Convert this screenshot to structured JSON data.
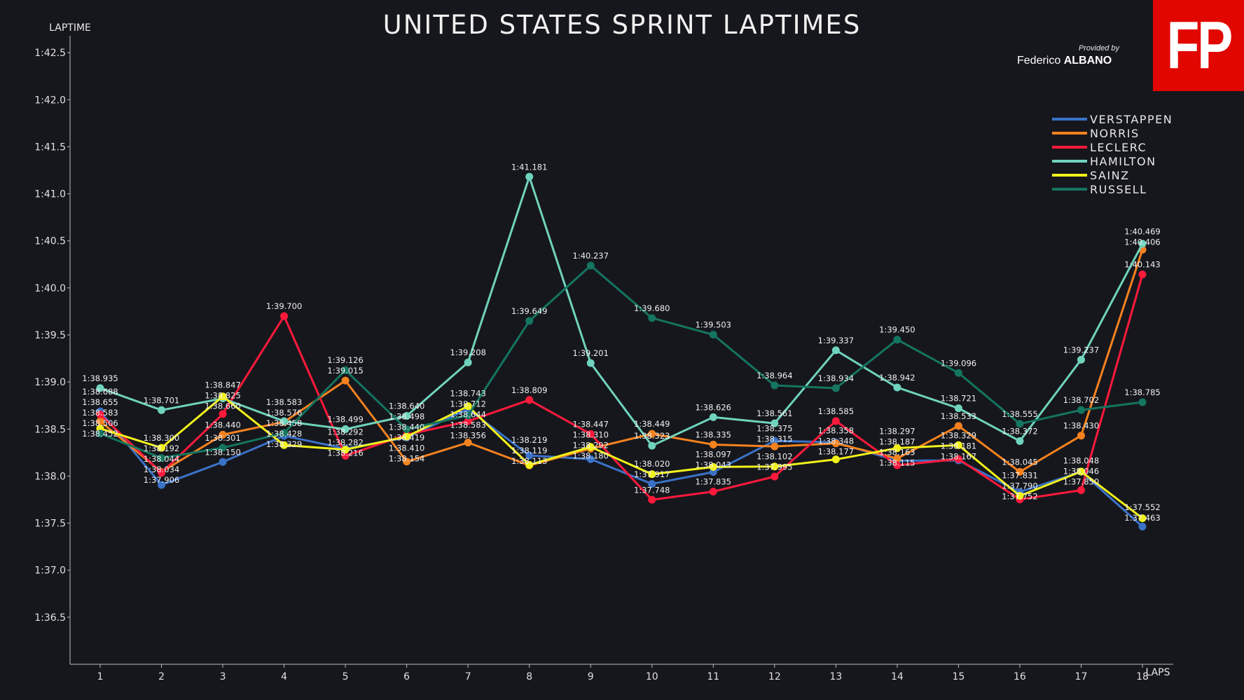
{
  "title": "UNITED STATES SPRINT LAPTIMES",
  "logo": {
    "text": "FP",
    "color": "#e10600"
  },
  "credit": {
    "provided_by": "Provided by",
    "first_name": "Federico",
    "last_name": "ALBANO"
  },
  "chart_data": {
    "type": "line",
    "title": "UNITED STATES SPRINT LAPTIMES",
    "xlabel": "LAPS",
    "ylabel": "LAPTIME",
    "x": [
      1,
      2,
      3,
      4,
      5,
      6,
      7,
      8,
      9,
      10,
      11,
      12,
      13,
      14,
      15,
      16,
      17,
      18
    ],
    "ylim": [
      96.0,
      102.68
    ],
    "yticks": [
      96.5,
      97.0,
      97.5,
      98.0,
      98.5,
      99.0,
      99.5,
      100.0,
      100.5,
      101.0,
      101.5,
      102.0,
      102.5
    ],
    "ytick_labels": [
      "1:36.5",
      "1:37.0",
      "1:37.5",
      "1:38.0",
      "1:38.5",
      "1:39.0",
      "1:39.5",
      "1:40.0",
      "1:40.5",
      "1:41.0",
      "1:41.5",
      "1:42.0",
      "1:42.5"
    ],
    "grid": false,
    "legend_position": "top-right",
    "value_unit": "seconds",
    "series": [
      {
        "name": "VERSTAPPEN",
        "color": "#3a72c8",
        "values": [
          98.688,
          97.906,
          98.15,
          98.428,
          98.292,
          98.41,
          98.712,
          98.219,
          98.18,
          97.917,
          98.043,
          98.375,
          98.358,
          98.163,
          98.167,
          97.831,
          98.046,
          97.463
        ]
      },
      {
        "name": "NORRIS",
        "color": "#f5821f",
        "values": [
          98.583,
          98.044,
          98.44,
          98.576,
          99.015,
          98.154,
          98.356,
          98.113,
          98.292,
          98.449,
          98.335,
          98.315,
          98.348,
          98.187,
          98.533,
          98.045,
          98.43,
          100.406
        ]
      },
      {
        "name": "LECLERC",
        "color": "#ff1a3c",
        "values": [
          98.655,
          98.034,
          98.66,
          99.7,
          98.216,
          98.44,
          98.583,
          98.809,
          98.447,
          97.748,
          97.835,
          97.995,
          98.585,
          98.115,
          98.181,
          97.752,
          97.85,
          100.143
        ]
      },
      {
        "name": "HAMILTON",
        "color": "#6fd3bd",
        "values": [
          98.935,
          98.701,
          98.825,
          98.583,
          98.499,
          98.64,
          99.208,
          101.181,
          99.201,
          98.323,
          98.626,
          98.561,
          99.337,
          98.942,
          98.721,
          98.372,
          99.237,
          100.469
        ]
      },
      {
        "name": "SAINZ",
        "color": "#f2f21a",
        "values": [
          98.506,
          98.3,
          98.847,
          98.329,
          98.282,
          98.419,
          98.743,
          98.119,
          98.31,
          98.02,
          98.097,
          98.102,
          98.177,
          98.297,
          98.329,
          97.79,
          98.048,
          97.552
        ]
      },
      {
        "name": "RUSSELL",
        "color": "#147560",
        "values": [
          98.452,
          98.192,
          98.301,
          98.458,
          99.126,
          98.498,
          98.644,
          99.649,
          100.237,
          99.68,
          99.503,
          98.964,
          98.934,
          99.45,
          99.096,
          98.555,
          98.702,
          98.785
        ]
      }
    ]
  }
}
